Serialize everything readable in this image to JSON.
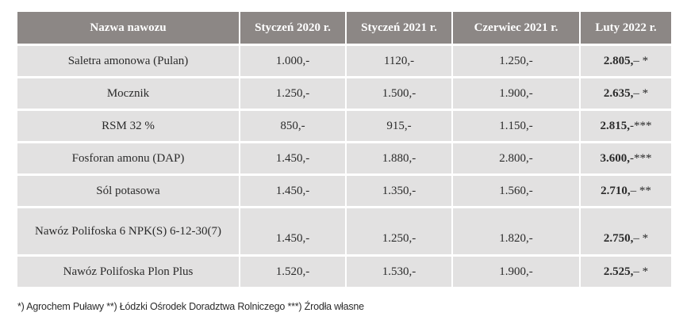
{
  "table": {
    "headers": [
      "Nazwa nawozu",
      "Styczeń 2020 r.",
      "Styczeń 2021 r.",
      "Czerwiec 2021 r.",
      "Luty 2022 r."
    ],
    "rows": [
      {
        "name": "Saletra amonowa (Pulan)",
        "jan2020": "1.000,-",
        "jan2021": "1120,-",
        "jun2021": "1.250,-",
        "feb2022_value": "2.805,",
        "feb2022_note": "– *"
      },
      {
        "name": "Mocznik",
        "jan2020": "1.250,-",
        "jan2021": "1.500,-",
        "jun2021": "1.900,-",
        "feb2022_value": "2.635,",
        "feb2022_note": "– *"
      },
      {
        "name": "RSM 32 %",
        "jan2020": "850,-",
        "jan2021": "915,-",
        "jun2021": "1.150,-",
        "feb2022_value": "2.815,",
        "feb2022_note": "-***"
      },
      {
        "name": "Fosforan amonu (DAP)",
        "jan2020": "1.450,-",
        "jan2021": "1.880,-",
        "jun2021": "2.800,-",
        "feb2022_value": "3.600,",
        "feb2022_note": "-***"
      },
      {
        "name": "Sól potasowa",
        "jan2020": "1.450,-",
        "jan2021": "1.350,-",
        "jun2021": "1.560,-",
        "feb2022_value": "2.710,",
        "feb2022_note": "– **"
      },
      {
        "name": "Nawóz Polifoska 6 NPK(S) 6-12-30(7)",
        "jan2020": "1.450,-",
        "jan2021": "1.250,-",
        "jun2021": "1.820,-",
        "feb2022_value": "2.750,",
        "feb2022_note": "– *"
      },
      {
        "name": "Nawóz Polifoska Plon Plus",
        "jan2020": "1.520,-",
        "jan2021": "1.530,-",
        "jun2021": "1.900,-",
        "feb2022_value": "2.525,",
        "feb2022_note": "– *"
      }
    ]
  },
  "footnote": "*) Agrochem Puławy **) Łódzki Ośrodek Doradztwa Rolniczego ***) Źrodła własne"
}
